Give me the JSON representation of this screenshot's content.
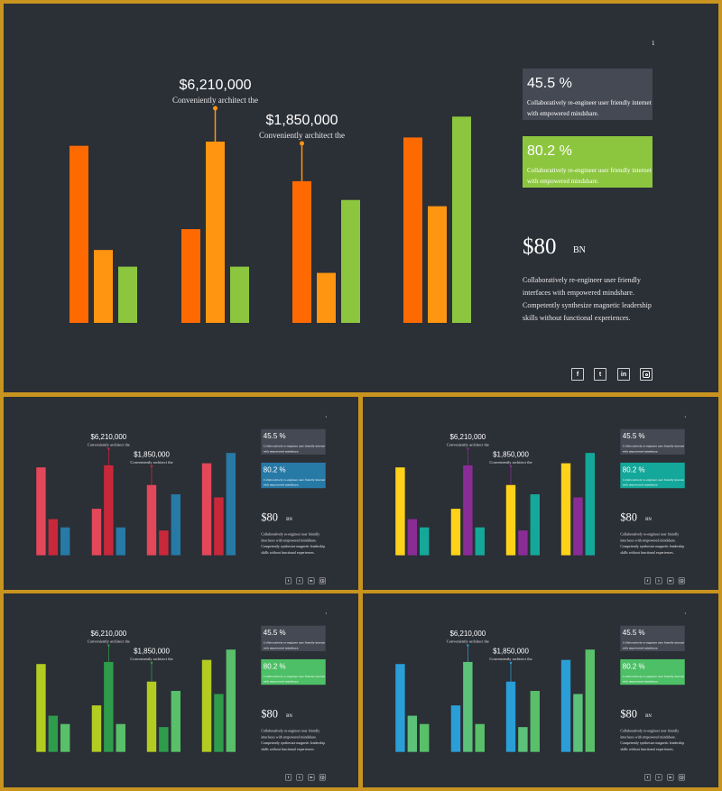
{
  "chart_data": [
    {
      "type": "bar",
      "title": "",
      "xlabel": "",
      "ylabel": "",
      "categories": [
        "",
        "",
        "",
        ""
      ],
      "series": [
        {
          "values": [
            85,
            45,
            68,
            89
          ]
        },
        {
          "values": [
            35,
            87,
            24,
            56
          ]
        },
        {
          "values": [
            27,
            27,
            59,
            99
          ]
        }
      ],
      "ylim": [
        0,
        100
      ],
      "grid": false,
      "callouts": [
        {
          "value": "$6,210,000",
          "caption": "Conveniently architect the",
          "category": 2,
          "series": 2
        },
        {
          "value": "$1,850,000",
          "caption": "Conveniently architect the",
          "category": 3,
          "series": 1
        }
      ]
    }
  ],
  "slide_number": "1",
  "stats": [
    {
      "value": "45.5 %",
      "text": "Collaboratively re-engineer user friendly internet with empowered mindshare."
    },
    {
      "value": "80.2 %",
      "text": "Collaboratively re-engineer user friendly internet with empowered mindshare."
    }
  ],
  "big_stat": {
    "value": "$80",
    "unit": "BN"
  },
  "description": "Collaboratively re-engineer user friendly interfaces with empowered mindshare. Competently synthesize magnetic leadership skills without functional experiences.",
  "social_icons": [
    "facebook-icon",
    "twitter-icon",
    "linkedin-icon",
    "instagram-icon"
  ],
  "social_labels": {
    "facebook": "f",
    "twitter": "t",
    "linkedin": "in"
  },
  "themes": [
    {
      "series_colors": [
        "#ff6a00",
        "#ff9510",
        "#8cc63f"
      ],
      "stat_color": "#8cc63f",
      "line_color": "#ff9510"
    },
    {
      "series_colors": [
        "#e3475a",
        "#c9283b",
        "#2779a6"
      ],
      "stat_color": "#2779a6",
      "line_color": "#c9283b"
    },
    {
      "series_colors": [
        "#ffd21a",
        "#8a2c96",
        "#14a89a"
      ],
      "stat_color": "#14a89a",
      "line_color": "#8a2c96"
    },
    {
      "series_colors": [
        "#b3cc22",
        "#2e9c4b",
        "#59c06a"
      ],
      "stat_color": "#4dbf66",
      "line_color": "#2e9c4b"
    },
    {
      "series_colors": [
        "#2a9ed6",
        "#5cc27a",
        "#59c06a"
      ],
      "stat_color": "#4dbf66",
      "line_color": "#2a9ed6"
    }
  ]
}
